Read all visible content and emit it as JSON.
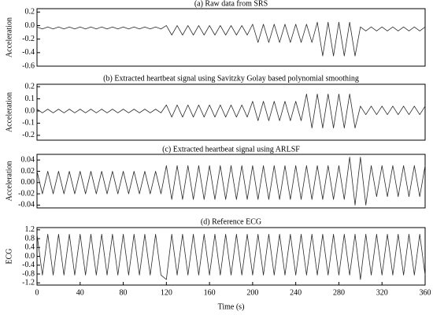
{
  "chart_data": [
    {
      "type": "line",
      "title": "(a) Raw data from SRS",
      "ylabel": "Acceleration",
      "color": "#2a2a2a",
      "xlim": [
        0,
        360
      ],
      "ylim": [
        -0.6,
        0.25
      ],
      "yticks": [
        0.2,
        {
          "value": 0,
          "label": "0.0"
        },
        -0.2,
        -0.4,
        -0.6
      ],
      "x": [
        0,
        5,
        10,
        15,
        20,
        25,
        30,
        35,
        40,
        45,
        50,
        55,
        60,
        65,
        70,
        75,
        80,
        85,
        90,
        95,
        100,
        105,
        110,
        115,
        120,
        125,
        130,
        135,
        140,
        145,
        150,
        155,
        160,
        165,
        170,
        175,
        180,
        185,
        190,
        195,
        200,
        205,
        210,
        215,
        220,
        225,
        230,
        235,
        240,
        245,
        250,
        255,
        260,
        265,
        270,
        275,
        280,
        285,
        290,
        295,
        300,
        305,
        310,
        315,
        320,
        325,
        330,
        335,
        340,
        345,
        350,
        355,
        360
      ],
      "values": [
        -0.02,
        -0.05,
        -0.02,
        -0.05,
        -0.02,
        -0.05,
        -0.02,
        -0.05,
        -0.02,
        -0.05,
        -0.02,
        -0.05,
        -0.02,
        -0.05,
        -0.02,
        -0.05,
        -0.02,
        -0.05,
        -0.02,
        -0.05,
        -0.02,
        -0.05,
        -0.02,
        -0.05,
        0.0,
        -0.14,
        0.0,
        -0.14,
        0.0,
        -0.14,
        0.0,
        -0.14,
        0.0,
        -0.14,
        0.0,
        -0.14,
        0.0,
        -0.14,
        0.0,
        -0.14,
        0.02,
        -0.25,
        0.02,
        -0.25,
        0.02,
        -0.25,
        0.02,
        -0.25,
        0.02,
        -0.25,
        0.02,
        -0.25,
        0.05,
        -0.45,
        0.05,
        -0.45,
        0.05,
        -0.45,
        0.05,
        -0.45,
        -0.02,
        -0.08,
        -0.02,
        -0.08,
        -0.02,
        -0.08,
        -0.02,
        -0.08,
        -0.02,
        -0.08,
        -0.02,
        -0.08,
        -0.02
      ]
    },
    {
      "type": "line",
      "title": "(b) Extracted heartbeat signal using Savitzky Golay based polynomial smoothing",
      "ylabel": "Acceleration",
      "color": "#2a2a2a",
      "xlim": [
        0,
        360
      ],
      "ylim": [
        -0.24,
        0.22
      ],
      "yticks": [
        0.2,
        0.1,
        {
          "value": 0,
          "label": "0.0"
        },
        -0.1,
        -0.2
      ],
      "x": [
        0,
        5,
        10,
        15,
        20,
        25,
        30,
        35,
        40,
        45,
        50,
        55,
        60,
        65,
        70,
        75,
        80,
        85,
        90,
        95,
        100,
        105,
        110,
        115,
        120,
        125,
        130,
        135,
        140,
        145,
        150,
        155,
        160,
        165,
        170,
        175,
        180,
        185,
        190,
        195,
        200,
        205,
        210,
        215,
        220,
        225,
        230,
        235,
        240,
        245,
        250,
        255,
        260,
        265,
        270,
        275,
        280,
        285,
        290,
        295,
        300,
        305,
        310,
        315,
        320,
        325,
        330,
        335,
        340,
        345,
        350,
        355,
        360
      ],
      "values": [
        0.015,
        -0.015,
        0.015,
        -0.015,
        0.015,
        -0.015,
        0.015,
        -0.015,
        0.015,
        -0.015,
        0.015,
        -0.015,
        0.015,
        -0.015,
        0.015,
        -0.015,
        0.015,
        -0.015,
        0.015,
        -0.015,
        0.015,
        -0.015,
        0.015,
        -0.015,
        0.05,
        -0.05,
        0.05,
        -0.05,
        0.05,
        -0.05,
        0.05,
        -0.05,
        0.05,
        -0.05,
        0.05,
        -0.05,
        0.05,
        -0.05,
        0.05,
        -0.05,
        0.08,
        -0.08,
        0.08,
        -0.08,
        0.08,
        -0.08,
        0.08,
        -0.08,
        0.08,
        -0.08,
        0.14,
        -0.14,
        0.14,
        -0.14,
        0.14,
        -0.14,
        0.14,
        -0.14,
        0.14,
        -0.14,
        0.04,
        -0.03,
        0.04,
        -0.03,
        0.04,
        -0.03,
        0.04,
        -0.03,
        0.04,
        -0.03,
        0.04,
        -0.03,
        0.04
      ]
    },
    {
      "type": "line",
      "title": "(c) Extracted heartbeat signal using ARLSF",
      "ylabel": "Acceleration",
      "color": "#2a2a2a",
      "xlim": [
        0,
        360
      ],
      "ylim": [
        -0.045,
        0.05
      ],
      "yticks": [
        0.04,
        0.02,
        {
          "value": 0,
          "label": "0.00"
        },
        -0.02,
        -0.04
      ],
      "x": [
        0,
        5,
        10,
        15,
        20,
        25,
        30,
        35,
        40,
        45,
        50,
        55,
        60,
        65,
        70,
        75,
        80,
        85,
        90,
        95,
        100,
        105,
        110,
        115,
        120,
        125,
        130,
        135,
        140,
        145,
        150,
        155,
        160,
        165,
        170,
        175,
        180,
        185,
        190,
        195,
        200,
        205,
        210,
        215,
        220,
        225,
        230,
        235,
        240,
        245,
        250,
        255,
        260,
        265,
        270,
        275,
        280,
        285,
        290,
        295,
        300,
        305,
        310,
        315,
        320,
        325,
        330,
        335,
        340,
        345,
        350,
        355,
        360
      ],
      "values": [
        0.02,
        -0.02,
        0.02,
        -0.02,
        0.02,
        -0.02,
        0.02,
        -0.02,
        0.02,
        -0.02,
        0.02,
        -0.02,
        0.02,
        -0.02,
        0.02,
        -0.02,
        0.02,
        -0.02,
        0.02,
        -0.02,
        0.02,
        -0.02,
        0.02,
        -0.02,
        0.03,
        -0.03,
        0.03,
        -0.03,
        0.03,
        -0.03,
        0.03,
        -0.03,
        0.03,
        -0.03,
        0.03,
        -0.03,
        0.03,
        -0.03,
        0.03,
        -0.03,
        0.03,
        -0.03,
        0.03,
        -0.03,
        0.03,
        -0.03,
        0.03,
        -0.03,
        0.03,
        -0.03,
        0.03,
        -0.03,
        0.03,
        -0.03,
        0.03,
        -0.03,
        0.03,
        -0.03,
        0.045,
        -0.04,
        0.045,
        -0.04,
        0.03,
        -0.025,
        0.03,
        -0.025,
        0.03,
        -0.025,
        0.03,
        -0.025,
        0.03,
        -0.025,
        0.03
      ]
    },
    {
      "type": "line",
      "title": "(d) Reference ECG",
      "ylabel": "ECG",
      "xlabel": "Time (s)",
      "color": "#2a2a2a",
      "xlim": [
        0,
        360
      ],
      "xticks": [
        0,
        40,
        80,
        120,
        160,
        200,
        240,
        280,
        320,
        360
      ],
      "ylim": [
        -1.3,
        1.3
      ],
      "yticks": [
        1.2,
        0.8,
        0.4,
        {
          "value": 0,
          "label": "0.0"
        },
        -0.4,
        -0.8,
        -1.2
      ],
      "x": [
        0,
        5,
        10,
        15,
        20,
        25,
        30,
        35,
        40,
        45,
        50,
        55,
        60,
        65,
        70,
        75,
        80,
        85,
        90,
        95,
        100,
        105,
        110,
        115,
        120,
        125,
        130,
        135,
        140,
        145,
        150,
        155,
        160,
        165,
        170,
        175,
        180,
        185,
        190,
        195,
        200,
        205,
        210,
        215,
        220,
        225,
        230,
        235,
        240,
        245,
        250,
        255,
        260,
        265,
        270,
        275,
        280,
        285,
        290,
        295,
        300,
        305,
        310,
        315,
        320,
        325,
        330,
        335,
        340,
        345,
        350,
        355,
        360
      ],
      "values": [
        1.0,
        -0.85,
        1.0,
        -0.85,
        1.0,
        -0.85,
        1.0,
        -0.85,
        1.0,
        -0.85,
        1.0,
        -0.85,
        1.0,
        -0.85,
        1.0,
        -0.85,
        1.0,
        -0.85,
        1.0,
        -0.85,
        1.0,
        -0.85,
        1.0,
        -0.85,
        -1.05,
        1.0,
        -0.85,
        1.0,
        -0.85,
        1.0,
        -0.85,
        1.0,
        -0.85,
        1.0,
        -0.85,
        1.0,
        -0.85,
        1.0,
        -0.85,
        1.0,
        -0.85,
        1.0,
        -0.85,
        1.0,
        -0.85,
        1.0,
        -0.85,
        1.0,
        -0.85,
        1.0,
        -0.85,
        1.0,
        -0.85,
        1.0,
        -0.85,
        1.0,
        -0.85,
        1.0,
        -0.85,
        1.0,
        -1.05,
        1.0,
        -0.85,
        1.0,
        -0.85,
        1.0,
        -0.85,
        1.0,
        -0.85,
        1.0,
        -0.85,
        1.0,
        -0.85
      ]
    }
  ]
}
